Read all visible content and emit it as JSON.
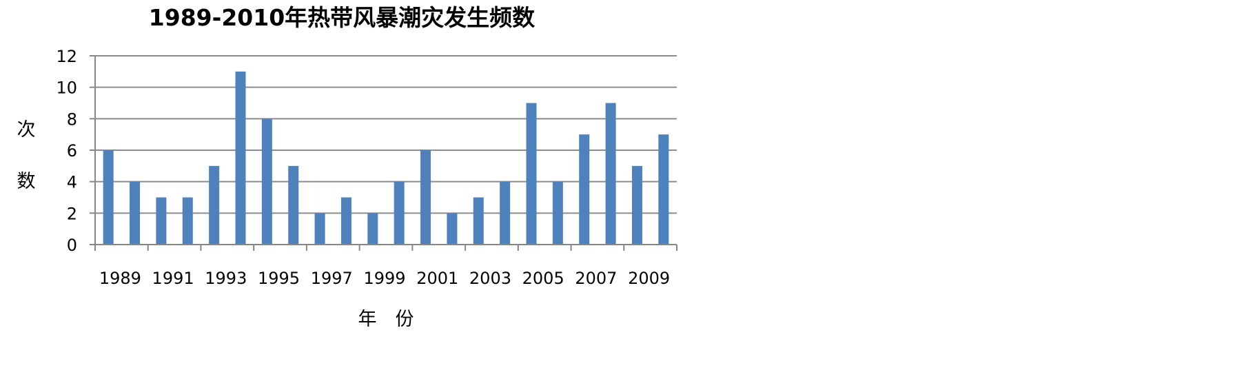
{
  "chart_data": {
    "type": "bar",
    "title": "1989-2010年热带风暴潮灾发生频数",
    "xlabel": "年　份",
    "ylabel": "次数",
    "categories": [
      "1989",
      "1990",
      "1991",
      "1992",
      "1993",
      "1994",
      "1995",
      "1996",
      "1997",
      "1998",
      "1999",
      "2000",
      "2001",
      "2002",
      "2003",
      "2004",
      "2005",
      "2006",
      "2007",
      "2008",
      "2009",
      "2010"
    ],
    "x_tick_labels": [
      "1989",
      "1991",
      "1993",
      "1995",
      "1997",
      "1999",
      "2001",
      "2003",
      "2005",
      "2007",
      "2009"
    ],
    "values": [
      6,
      4,
      3,
      3,
      5,
      11,
      8,
      5,
      2,
      3,
      2,
      4,
      6,
      2,
      3,
      4,
      9,
      4,
      7,
      9,
      5,
      7
    ],
    "ylim": [
      0,
      12
    ],
    "y_ticks": [
      0,
      2,
      4,
      6,
      8,
      10,
      12
    ],
    "grid": true,
    "legend": "none",
    "bar_color": "#4f81bd",
    "grid_color": "#8c8c8c",
    "axis_color": "#868686"
  }
}
